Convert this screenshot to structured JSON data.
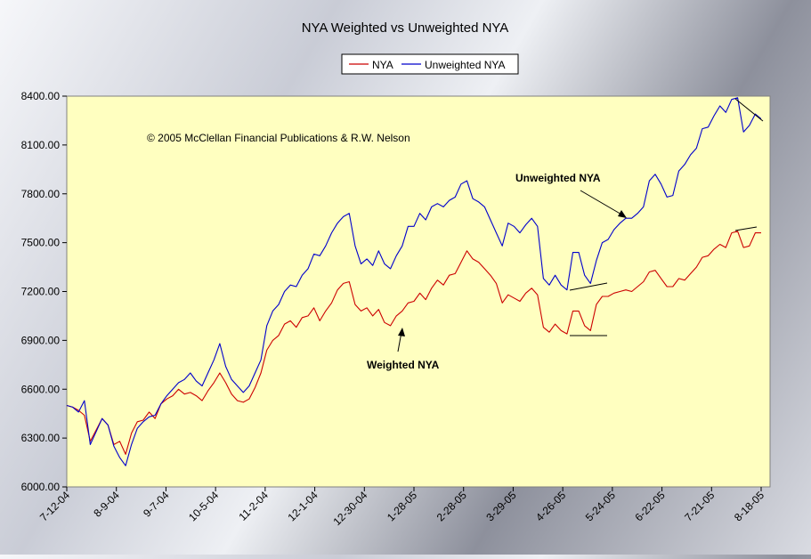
{
  "chart_data": {
    "type": "line",
    "title": "NYA Weighted vs Unweighted NYA",
    "xlabel": "",
    "ylabel": "",
    "ylim": [
      6000,
      8400
    ],
    "x_tick_labels": [
      "7-12-04",
      "8-9-04",
      "9-7-04",
      "10-5-04",
      "11-2-04",
      "12-1-04",
      "12-30-04",
      "1-28-05",
      "2-28-05",
      "3-29-05",
      "4-26-05",
      "5-24-05",
      "6-22-05",
      "7-21-05",
      "8-18-05"
    ],
    "y_tick_labels": [
      "6000.00",
      "6300.00",
      "6600.00",
      "6900.00",
      "7200.00",
      "7500.00",
      "7800.00",
      "8100.00",
      "8400.00"
    ],
    "y_ticks": [
      6000,
      6300,
      6600,
      6900,
      7200,
      7500,
      7800,
      8100,
      8400
    ],
    "grid": false,
    "legend_position": "top-center",
    "plot_background": "#ffffc0",
    "copyright": "© 2005 McClellan Financial Publications & R.W. Nelson",
    "annotations": [
      {
        "text": "Unweighted NYA",
        "points_to": "Unweighted NYA"
      },
      {
        "text": "Weighted NYA",
        "points_to": "NYA"
      }
    ],
    "series": [
      {
        "name": "NYA",
        "color": "#cc0000",
        "values": [
          [
            0,
            6500
          ],
          [
            2,
            6490
          ],
          [
            4,
            6470
          ],
          [
            6,
            6440
          ],
          [
            8,
            6280
          ],
          [
            10,
            6350
          ],
          [
            12,
            6420
          ],
          [
            14,
            6380
          ],
          [
            16,
            6260
          ],
          [
            18,
            6280
          ],
          [
            20,
            6200
          ],
          [
            22,
            6330
          ],
          [
            24,
            6400
          ],
          [
            26,
            6410
          ],
          [
            28,
            6460
          ],
          [
            30,
            6420
          ],
          [
            32,
            6510
          ],
          [
            34,
            6540
          ],
          [
            36,
            6560
          ],
          [
            38,
            6600
          ],
          [
            40,
            6570
          ],
          [
            42,
            6580
          ],
          [
            44,
            6560
          ],
          [
            46,
            6530
          ],
          [
            48,
            6590
          ],
          [
            50,
            6640
          ],
          [
            52,
            6700
          ],
          [
            54,
            6640
          ],
          [
            56,
            6570
          ],
          [
            58,
            6530
          ],
          [
            60,
            6520
          ],
          [
            62,
            6540
          ],
          [
            64,
            6610
          ],
          [
            66,
            6700
          ],
          [
            68,
            6840
          ],
          [
            70,
            6900
          ],
          [
            72,
            6930
          ],
          [
            74,
            7000
          ],
          [
            76,
            7020
          ],
          [
            78,
            6980
          ],
          [
            80,
            7040
          ],
          [
            82,
            7050
          ],
          [
            84,
            7100
          ],
          [
            86,
            7020
          ],
          [
            88,
            7080
          ],
          [
            90,
            7130
          ],
          [
            92,
            7210
          ],
          [
            94,
            7250
          ],
          [
            96,
            7260
          ],
          [
            98,
            7120
          ],
          [
            100,
            7080
          ],
          [
            102,
            7100
          ],
          [
            104,
            7050
          ],
          [
            106,
            7090
          ],
          [
            108,
            7010
          ],
          [
            110,
            6990
          ],
          [
            112,
            7050
          ],
          [
            114,
            7080
          ],
          [
            116,
            7130
          ],
          [
            118,
            7140
          ],
          [
            120,
            7190
          ],
          [
            122,
            7150
          ],
          [
            124,
            7220
          ],
          [
            126,
            7270
          ],
          [
            128,
            7240
          ],
          [
            130,
            7300
          ],
          [
            132,
            7310
          ],
          [
            134,
            7380
          ],
          [
            136,
            7450
          ],
          [
            138,
            7400
          ],
          [
            140,
            7380
          ],
          [
            142,
            7340
          ],
          [
            144,
            7300
          ],
          [
            146,
            7250
          ],
          [
            148,
            7130
          ],
          [
            150,
            7180
          ],
          [
            152,
            7160
          ],
          [
            154,
            7140
          ],
          [
            156,
            7190
          ],
          [
            158,
            7220
          ],
          [
            160,
            7180
          ],
          [
            162,
            6980
          ],
          [
            164,
            6950
          ],
          [
            166,
            7000
          ],
          [
            168,
            6960
          ],
          [
            170,
            6940
          ],
          [
            172,
            7080
          ],
          [
            174,
            7080
          ],
          [
            176,
            6990
          ],
          [
            178,
            6960
          ],
          [
            180,
            7120
          ],
          [
            182,
            7170
          ],
          [
            184,
            7170
          ],
          [
            186,
            7190
          ],
          [
            188,
            7200
          ],
          [
            190,
            7210
          ],
          [
            192,
            7200
          ],
          [
            194,
            7230
          ],
          [
            196,
            7260
          ],
          [
            198,
            7320
          ],
          [
            200,
            7330
          ],
          [
            202,
            7280
          ],
          [
            204,
            7230
          ],
          [
            206,
            7230
          ],
          [
            208,
            7280
          ],
          [
            210,
            7270
          ],
          [
            212,
            7310
          ],
          [
            214,
            7350
          ],
          [
            216,
            7410
          ],
          [
            218,
            7420
          ],
          [
            220,
            7460
          ],
          [
            222,
            7490
          ],
          [
            224,
            7470
          ],
          [
            226,
            7560
          ],
          [
            228,
            7570
          ],
          [
            230,
            7470
          ],
          [
            232,
            7480
          ],
          [
            234,
            7560
          ],
          [
            236,
            7560
          ]
        ]
      },
      {
        "name": "Unweighted NYA",
        "color": "#0000cc",
        "values": [
          [
            0,
            6500
          ],
          [
            2,
            6490
          ],
          [
            4,
            6460
          ],
          [
            6,
            6530
          ],
          [
            8,
            6260
          ],
          [
            10,
            6340
          ],
          [
            12,
            6420
          ],
          [
            14,
            6380
          ],
          [
            16,
            6250
          ],
          [
            18,
            6180
          ],
          [
            20,
            6130
          ],
          [
            22,
            6260
          ],
          [
            24,
            6360
          ],
          [
            26,
            6400
          ],
          [
            28,
            6430
          ],
          [
            30,
            6440
          ],
          [
            32,
            6510
          ],
          [
            34,
            6560
          ],
          [
            36,
            6600
          ],
          [
            38,
            6640
          ],
          [
            40,
            6660
          ],
          [
            42,
            6700
          ],
          [
            44,
            6650
          ],
          [
            46,
            6620
          ],
          [
            48,
            6700
          ],
          [
            50,
            6780
          ],
          [
            52,
            6880
          ],
          [
            54,
            6740
          ],
          [
            56,
            6660
          ],
          [
            58,
            6620
          ],
          [
            60,
            6580
          ],
          [
            62,
            6620
          ],
          [
            64,
            6700
          ],
          [
            66,
            6780
          ],
          [
            68,
            6990
          ],
          [
            70,
            7080
          ],
          [
            72,
            7120
          ],
          [
            74,
            7200
          ],
          [
            76,
            7240
          ],
          [
            78,
            7230
          ],
          [
            80,
            7300
          ],
          [
            82,
            7340
          ],
          [
            84,
            7430
          ],
          [
            86,
            7420
          ],
          [
            88,
            7480
          ],
          [
            90,
            7560
          ],
          [
            92,
            7620
          ],
          [
            94,
            7660
          ],
          [
            96,
            7680
          ],
          [
            98,
            7480
          ],
          [
            100,
            7370
          ],
          [
            102,
            7400
          ],
          [
            104,
            7360
          ],
          [
            106,
            7450
          ],
          [
            108,
            7370
          ],
          [
            110,
            7340
          ],
          [
            112,
            7420
          ],
          [
            114,
            7480
          ],
          [
            116,
            7600
          ],
          [
            118,
            7600
          ],
          [
            120,
            7680
          ],
          [
            122,
            7640
          ],
          [
            124,
            7720
          ],
          [
            126,
            7740
          ],
          [
            128,
            7720
          ],
          [
            130,
            7760
          ],
          [
            132,
            7780
          ],
          [
            134,
            7860
          ],
          [
            136,
            7880
          ],
          [
            138,
            7770
          ],
          [
            140,
            7750
          ],
          [
            142,
            7720
          ],
          [
            144,
            7640
          ],
          [
            146,
            7560
          ],
          [
            148,
            7480
          ],
          [
            150,
            7620
          ],
          [
            152,
            7600
          ],
          [
            154,
            7560
          ],
          [
            156,
            7610
          ],
          [
            158,
            7650
          ],
          [
            160,
            7600
          ],
          [
            162,
            7280
          ],
          [
            164,
            7240
          ],
          [
            166,
            7300
          ],
          [
            168,
            7240
          ],
          [
            170,
            7210
          ],
          [
            172,
            7440
          ],
          [
            174,
            7440
          ],
          [
            176,
            7300
          ],
          [
            178,
            7250
          ],
          [
            180,
            7390
          ],
          [
            182,
            7500
          ],
          [
            184,
            7520
          ],
          [
            186,
            7580
          ],
          [
            188,
            7620
          ],
          [
            190,
            7650
          ],
          [
            192,
            7650
          ],
          [
            194,
            7680
          ],
          [
            196,
            7720
          ],
          [
            198,
            7880
          ],
          [
            200,
            7920
          ],
          [
            202,
            7860
          ],
          [
            204,
            7780
          ],
          [
            206,
            7790
          ],
          [
            208,
            7940
          ],
          [
            210,
            7980
          ],
          [
            212,
            8040
          ],
          [
            214,
            8080
          ],
          [
            216,
            8200
          ],
          [
            218,
            8210
          ],
          [
            220,
            8280
          ],
          [
            222,
            8340
          ],
          [
            224,
            8300
          ],
          [
            226,
            8380
          ],
          [
            228,
            8390
          ],
          [
            230,
            8180
          ],
          [
            232,
            8220
          ],
          [
            234,
            8290
          ],
          [
            236,
            8260
          ]
        ]
      }
    ]
  }
}
